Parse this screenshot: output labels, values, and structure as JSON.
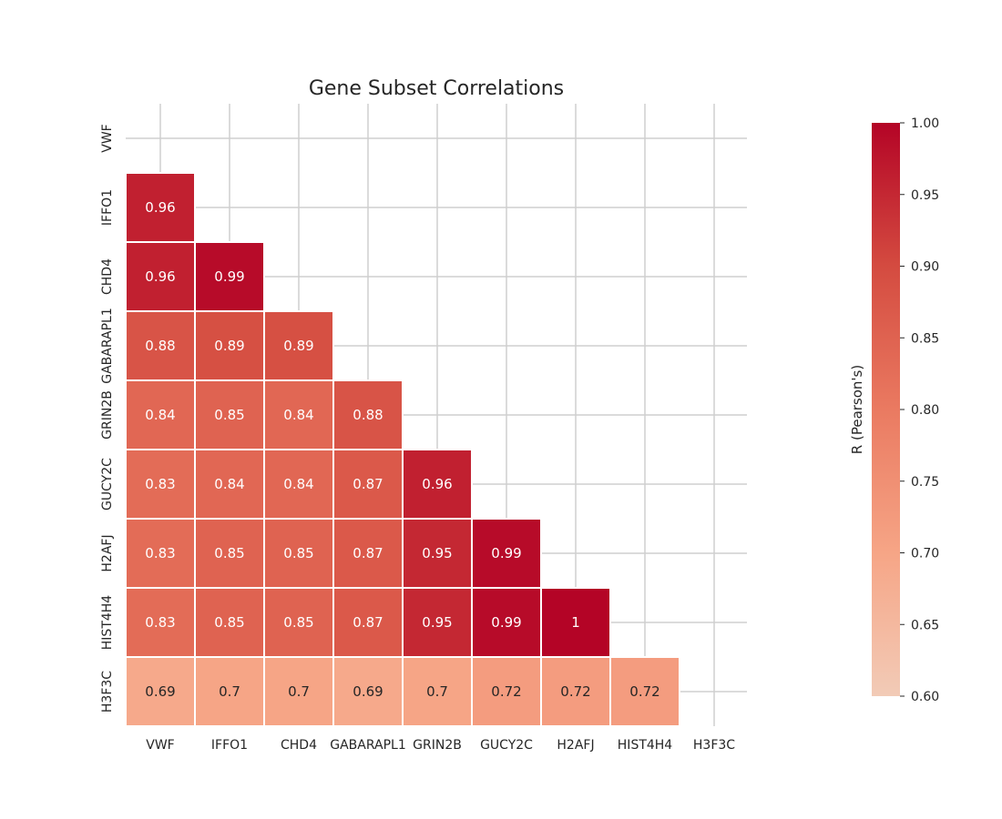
{
  "chart_data": {
    "type": "heatmap",
    "title": "Gene Subset Correlations",
    "rows": [
      "VWF",
      "IFFO1",
      "CHD4",
      "GABARAPL1",
      "GRIN2B",
      "GUCY2C",
      "H2AFJ",
      "HIST4H4",
      "H3F3C"
    ],
    "columns": [
      "VWF",
      "IFFO1",
      "CHD4",
      "GABARAPL1",
      "GRIN2B",
      "GUCY2C",
      "H2AFJ",
      "HIST4H4",
      "H3F3C"
    ],
    "mask": "upper-triangle-including-diagonal",
    "cells": [
      {
        "row": "IFFO1",
        "col": "VWF",
        "value": 0.96,
        "label": "0.96"
      },
      {
        "row": "CHD4",
        "col": "VWF",
        "value": 0.96,
        "label": "0.96"
      },
      {
        "row": "CHD4",
        "col": "IFFO1",
        "value": 0.99,
        "label": "0.99"
      },
      {
        "row": "GABARAPL1",
        "col": "VWF",
        "value": 0.88,
        "label": "0.88"
      },
      {
        "row": "GABARAPL1",
        "col": "IFFO1",
        "value": 0.89,
        "label": "0.89"
      },
      {
        "row": "GABARAPL1",
        "col": "CHD4",
        "value": 0.89,
        "label": "0.89"
      },
      {
        "row": "GRIN2B",
        "col": "VWF",
        "value": 0.84,
        "label": "0.84"
      },
      {
        "row": "GRIN2B",
        "col": "IFFO1",
        "value": 0.85,
        "label": "0.85"
      },
      {
        "row": "GRIN2B",
        "col": "CHD4",
        "value": 0.84,
        "label": "0.84"
      },
      {
        "row": "GRIN2B",
        "col": "GABARAPL1",
        "value": 0.88,
        "label": "0.88"
      },
      {
        "row": "GUCY2C",
        "col": "VWF",
        "value": 0.83,
        "label": "0.83"
      },
      {
        "row": "GUCY2C",
        "col": "IFFO1",
        "value": 0.84,
        "label": "0.84"
      },
      {
        "row": "GUCY2C",
        "col": "CHD4",
        "value": 0.84,
        "label": "0.84"
      },
      {
        "row": "GUCY2C",
        "col": "GABARAPL1",
        "value": 0.87,
        "label": "0.87"
      },
      {
        "row": "GUCY2C",
        "col": "GRIN2B",
        "value": 0.96,
        "label": "0.96"
      },
      {
        "row": "H2AFJ",
        "col": "VWF",
        "value": 0.83,
        "label": "0.83"
      },
      {
        "row": "H2AFJ",
        "col": "IFFO1",
        "value": 0.85,
        "label": "0.85"
      },
      {
        "row": "H2AFJ",
        "col": "CHD4",
        "value": 0.85,
        "label": "0.85"
      },
      {
        "row": "H2AFJ",
        "col": "GABARAPL1",
        "value": 0.87,
        "label": "0.87"
      },
      {
        "row": "H2AFJ",
        "col": "GRIN2B",
        "value": 0.95,
        "label": "0.95"
      },
      {
        "row": "H2AFJ",
        "col": "GUCY2C",
        "value": 0.99,
        "label": "0.99"
      },
      {
        "row": "HIST4H4",
        "col": "VWF",
        "value": 0.83,
        "label": "0.83"
      },
      {
        "row": "HIST4H4",
        "col": "IFFO1",
        "value": 0.85,
        "label": "0.85"
      },
      {
        "row": "HIST4H4",
        "col": "CHD4",
        "value": 0.85,
        "label": "0.85"
      },
      {
        "row": "HIST4H4",
        "col": "GABARAPL1",
        "value": 0.87,
        "label": "0.87"
      },
      {
        "row": "HIST4H4",
        "col": "GRIN2B",
        "value": 0.95,
        "label": "0.95"
      },
      {
        "row": "HIST4H4",
        "col": "GUCY2C",
        "value": 0.99,
        "label": "0.99"
      },
      {
        "row": "HIST4H4",
        "col": "H2AFJ",
        "value": 1.0,
        "label": "1"
      },
      {
        "row": "H3F3C",
        "col": "VWF",
        "value": 0.69,
        "label": "0.69"
      },
      {
        "row": "H3F3C",
        "col": "IFFO1",
        "value": 0.7,
        "label": "0.7"
      },
      {
        "row": "H3F3C",
        "col": "CHD4",
        "value": 0.7,
        "label": "0.7"
      },
      {
        "row": "H3F3C",
        "col": "GABARAPL1",
        "value": 0.69,
        "label": "0.69"
      },
      {
        "row": "H3F3C",
        "col": "GRIN2B",
        "value": 0.7,
        "label": "0.7"
      },
      {
        "row": "H3F3C",
        "col": "GUCY2C",
        "value": 0.72,
        "label": "0.72"
      },
      {
        "row": "H3F3C",
        "col": "H2AFJ",
        "value": 0.72,
        "label": "0.72"
      },
      {
        "row": "H3F3C",
        "col": "HIST4H4",
        "value": 0.72,
        "label": "0.72"
      }
    ],
    "colorbar": {
      "label": "R (Pearson's)",
      "range": [
        0.6,
        1.0
      ],
      "ticks": [
        "0.60",
        "0.65",
        "0.70",
        "0.75",
        "0.80",
        "0.85",
        "0.90",
        "0.95",
        "1.00"
      ],
      "colormap": "coolwarm (upper half)",
      "color_low": "#f2cbb7",
      "color_high": "#b40426"
    },
    "grid": true,
    "legend": "colorbar-right"
  }
}
